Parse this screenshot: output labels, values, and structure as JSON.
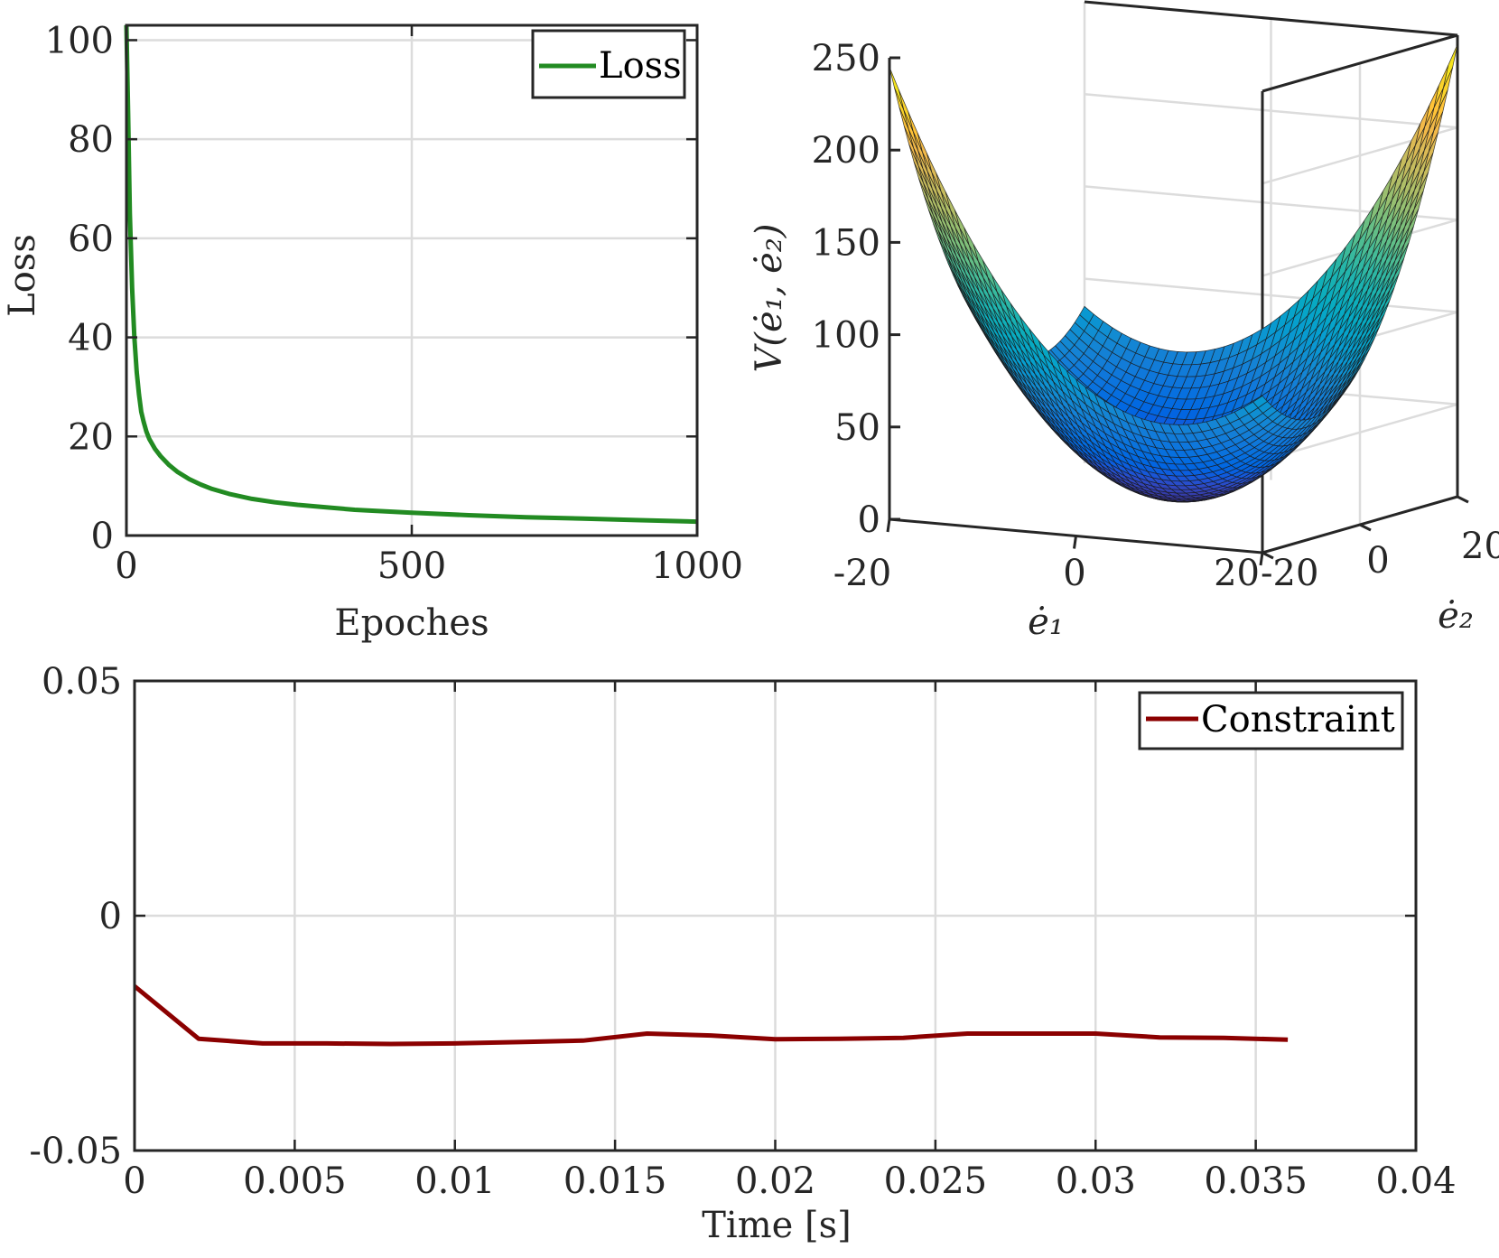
{
  "figure": {
    "panels": [
      "loss",
      "surface",
      "constraint"
    ]
  },
  "chart_data": [
    {
      "id": "loss",
      "type": "line",
      "title": "",
      "xlabel": "Epoches",
      "ylabel": "Loss",
      "xlim": [
        0,
        1000
      ],
      "ylim": [
        0,
        103
      ],
      "xticks": [
        0,
        500,
        1000
      ],
      "xtick_labels": [
        "0",
        "500",
        "1000"
      ],
      "yticks": [
        0,
        20,
        40,
        60,
        80,
        100
      ],
      "ytick_labels": [
        "0",
        "20",
        "40",
        "60",
        "80",
        "100"
      ],
      "grid": true,
      "legend": {
        "position": "top-right",
        "entries": [
          "Loss"
        ]
      },
      "series": [
        {
          "name": "Loss",
          "color": "#228b22",
          "x": [
            0,
            3,
            6,
            10,
            14,
            18,
            22,
            26,
            30,
            35,
            40,
            50,
            60,
            75,
            90,
            110,
            130,
            150,
            180,
            220,
            260,
            300,
            350,
            400,
            500,
            600,
            700,
            800,
            900,
            1000
          ],
          "y": [
            103,
            85,
            65,
            50,
            40,
            33,
            28.5,
            25,
            23,
            21,
            19.5,
            17.5,
            16,
            14.2,
            12.8,
            11.4,
            10.3,
            9.4,
            8.4,
            7.4,
            6.7,
            6.2,
            5.7,
            5.2,
            4.6,
            4.1,
            3.7,
            3.4,
            3.1,
            2.8
          ]
        }
      ]
    },
    {
      "id": "surface",
      "type": "heatmap",
      "subtype": "surface3d",
      "title": "",
      "xlabel": "ė₁",
      "ylabel": "ė₂",
      "zlabel": "V(ė₁, ė₂)",
      "xlim": [
        -20,
        20
      ],
      "ylim": [
        -20,
        20
      ],
      "zlim": [
        0,
        250
      ],
      "xtick_labels": [
        "-20",
        "0",
        "20"
      ],
      "ytick_labels": [
        "-20",
        "0",
        "20"
      ],
      "zticks": [
        0,
        50,
        100,
        150,
        200,
        250
      ],
      "ztick_labels": [
        "0",
        "50",
        "100",
        "150",
        "200",
        "250"
      ],
      "grid": true,
      "function": "V = 0.2*(e1^2 + e2^2) + 0.2*e1*e2 + 5",
      "colormap": "parula",
      "z_min": 5,
      "z_max": 245
    },
    {
      "id": "constraint",
      "type": "line",
      "title": "",
      "xlabel": "Time [s]",
      "ylabel": "",
      "xlim": [
        0,
        0.04
      ],
      "ylim": [
        -0.05,
        0.05
      ],
      "xticks": [
        0,
        0.005,
        0.01,
        0.015,
        0.02,
        0.025,
        0.03,
        0.035,
        0.04
      ],
      "xtick_labels": [
        "0",
        "0.005",
        "0.01",
        "0.015",
        "0.02",
        "0.025",
        "0.03",
        "0.035",
        "0.04"
      ],
      "yticks": [
        -0.05,
        0,
        0.05
      ],
      "ytick_labels": [
        "-0.05",
        "0",
        "0.05"
      ],
      "grid": true,
      "legend": {
        "position": "top-right",
        "entries": [
          "Constraint"
        ]
      },
      "series": [
        {
          "name": "Constraint",
          "color": "#8b0000",
          "x": [
            0,
            0.002,
            0.004,
            0.006,
            0.008,
            0.01,
            0.012,
            0.014,
            0.016,
            0.018,
            0.02,
            0.022,
            0.024,
            0.026,
            0.028,
            0.03,
            0.032,
            0.034,
            0.036
          ],
          "y": [
            -0.015,
            -0.0262,
            -0.0272,
            -0.0272,
            -0.0273,
            -0.0272,
            -0.0269,
            -0.0266,
            -0.0251,
            -0.0255,
            -0.0263,
            -0.0262,
            -0.026,
            -0.0251,
            -0.0251,
            -0.0251,
            -0.0259,
            -0.026,
            -0.0264
          ]
        }
      ]
    }
  ]
}
